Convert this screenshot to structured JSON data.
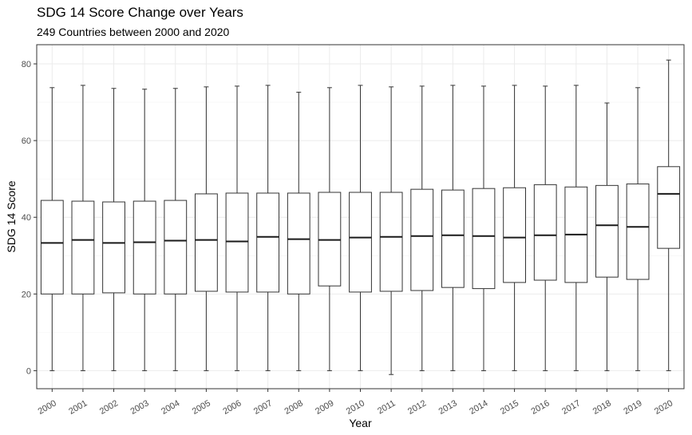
{
  "chart_data": {
    "type": "boxplot",
    "title": "SDG 14 Score Change over Years",
    "subtitle": "249 Countries between 2000 and 2020",
    "xlabel": "Year",
    "ylabel": "SDG 14 Score",
    "ylim": [
      -4.7,
      85
    ],
    "yticks": [
      0,
      20,
      40,
      60,
      80
    ],
    "grid": true,
    "categories": [
      "2000",
      "2001",
      "2002",
      "2003",
      "2004",
      "2005",
      "2006",
      "2007",
      "2008",
      "2009",
      "2010",
      "2011",
      "2012",
      "2013",
      "2014",
      "2015",
      "2016",
      "2017",
      "2018",
      "2019",
      "2020"
    ],
    "boxes": [
      {
        "min": 0,
        "q1": 20.0,
        "median": 33.3,
        "q3": 44.4,
        "max": 73.8
      },
      {
        "min": 0,
        "q1": 20.0,
        "median": 34.1,
        "q3": 44.2,
        "max": 74.4
      },
      {
        "min": 0,
        "q1": 20.3,
        "median": 33.3,
        "q3": 44.0,
        "max": 73.6
      },
      {
        "min": 0,
        "q1": 20.0,
        "median": 33.5,
        "q3": 44.2,
        "max": 73.4
      },
      {
        "min": 0,
        "q1": 20.0,
        "median": 33.9,
        "q3": 44.4,
        "max": 73.6
      },
      {
        "min": 0,
        "q1": 20.7,
        "median": 34.1,
        "q3": 46.1,
        "max": 74.0
      },
      {
        "min": 0,
        "q1": 20.5,
        "median": 33.7,
        "q3": 46.3,
        "max": 74.2
      },
      {
        "min": 0,
        "q1": 20.5,
        "median": 34.9,
        "q3": 46.3,
        "max": 74.4
      },
      {
        "min": 0,
        "q1": 20.0,
        "median": 34.3,
        "q3": 46.3,
        "max": 72.6
      },
      {
        "min": 0,
        "q1": 22.1,
        "median": 34.1,
        "q3": 46.5,
        "max": 73.8
      },
      {
        "min": 0,
        "q1": 20.5,
        "median": 34.7,
        "q3": 46.5,
        "max": 74.4
      },
      {
        "min": -1.0,
        "q1": 20.7,
        "median": 34.9,
        "q3": 46.5,
        "max": 74.0
      },
      {
        "min": 0,
        "q1": 20.9,
        "median": 35.1,
        "q3": 47.3,
        "max": 74.2
      },
      {
        "min": 0,
        "q1": 21.7,
        "median": 35.3,
        "q3": 47.1,
        "max": 74.4
      },
      {
        "min": 0,
        "q1": 21.4,
        "median": 35.1,
        "q3": 47.5,
        "max": 74.2
      },
      {
        "min": 0,
        "q1": 23.0,
        "median": 34.7,
        "q3": 47.7,
        "max": 74.4
      },
      {
        "min": 0,
        "q1": 23.6,
        "median": 35.3,
        "q3": 48.5,
        "max": 74.2
      },
      {
        "min": 0,
        "q1": 23.0,
        "median": 35.5,
        "q3": 47.9,
        "max": 74.4
      },
      {
        "min": 0,
        "q1": 24.4,
        "median": 37.9,
        "q3": 48.3,
        "max": 69.8
      },
      {
        "min": 0,
        "q1": 23.8,
        "median": 37.5,
        "q3": 48.7,
        "max": 73.8
      },
      {
        "min": 0,
        "q1": 31.9,
        "median": 46.1,
        "q3": 53.2,
        "max": 81.0
      }
    ]
  }
}
